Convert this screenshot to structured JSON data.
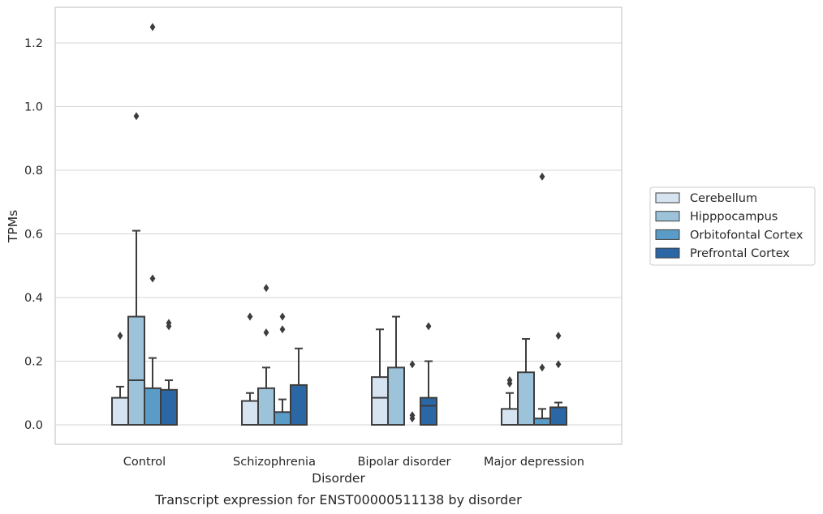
{
  "chart_data": {
    "type": "box",
    "title": "Transcript expression for ENST00000511138 by disorder",
    "xlabel": "Disorder",
    "ylabel": "TPMs",
    "ylim": [
      -0.06,
      1.32
    ],
    "yticks": [
      0.0,
      0.2,
      0.4,
      0.6,
      0.8,
      1.0,
      1.2
    ],
    "ytick_labels": [
      "0.0",
      "0.2",
      "0.4",
      "0.6",
      "0.8",
      "1.0",
      "1.2"
    ],
    "grid": "horizontal",
    "legend_position": "right",
    "categories": [
      "Control",
      "Schizophrenia",
      "Bipolar disorder",
      "Major depression"
    ],
    "series": [
      {
        "name": "Cerebellum",
        "color": "#d6e3f1",
        "boxes": [
          {
            "whislo": 0.0,
            "q1": 0.0,
            "med": 0.0,
            "q3": 0.085,
            "whishi": 0.12,
            "fliers": [
              0.28
            ]
          },
          {
            "whislo": 0.0,
            "q1": 0.0,
            "med": 0.0,
            "q3": 0.075,
            "whishi": 0.1,
            "fliers": [
              0.34
            ]
          },
          {
            "whislo": 0.0,
            "q1": 0.0,
            "med": 0.085,
            "q3": 0.15,
            "whishi": 0.3,
            "fliers": []
          },
          {
            "whislo": 0.0,
            "q1": 0.0,
            "med": 0.0,
            "q3": 0.05,
            "whishi": 0.1,
            "fliers": [
              0.13,
              0.14
            ]
          }
        ]
      },
      {
        "name": "Hipppocampus",
        "color": "#9cc3da",
        "boxes": [
          {
            "whislo": 0.0,
            "q1": 0.0,
            "med": 0.14,
            "q3": 0.34,
            "whishi": 0.61,
            "fliers": [
              0.97
            ]
          },
          {
            "whislo": 0.0,
            "q1": 0.0,
            "med": 0.0,
            "q3": 0.115,
            "whishi": 0.18,
            "fliers": [
              0.29,
              0.43
            ]
          },
          {
            "whislo": 0.0,
            "q1": 0.0,
            "med": 0.0,
            "q3": 0.18,
            "whishi": 0.34,
            "fliers": []
          },
          {
            "whislo": 0.0,
            "q1": 0.0,
            "med": 0.0,
            "q3": 0.165,
            "whishi": 0.27,
            "fliers": []
          }
        ]
      },
      {
        "name": "Orbitofontal Cortex",
        "color": "#5a9cc8",
        "boxes": [
          {
            "whislo": 0.0,
            "q1": 0.0,
            "med": 0.0,
            "q3": 0.115,
            "whishi": 0.21,
            "fliers": [
              0.46,
              1.25
            ]
          },
          {
            "whislo": 0.0,
            "q1": 0.0,
            "med": 0.0,
            "q3": 0.04,
            "whishi": 0.08,
            "fliers": [
              0.3,
              0.34
            ]
          },
          {
            "whislo": 0.0,
            "q1": 0.0,
            "med": 0.0,
            "q3": 0.0,
            "whishi": 0.0,
            "fliers": [
              0.02,
              0.03,
              0.19
            ]
          },
          {
            "whislo": 0.0,
            "q1": 0.0,
            "med": 0.0,
            "q3": 0.02,
            "whishi": 0.05,
            "fliers": [
              0.18,
              0.78
            ]
          }
        ]
      },
      {
        "name": "Prefrontal Cortex",
        "color": "#2c67a5",
        "boxes": [
          {
            "whislo": 0.0,
            "q1": 0.0,
            "med": 0.0,
            "q3": 0.11,
            "whishi": 0.14,
            "fliers": [
              0.31,
              0.32
            ]
          },
          {
            "whislo": 0.0,
            "q1": 0.0,
            "med": 0.0,
            "q3": 0.125,
            "whishi": 0.24,
            "fliers": []
          },
          {
            "whislo": 0.0,
            "q1": 0.0,
            "med": 0.06,
            "q3": 0.085,
            "whishi": 0.2,
            "fliers": [
              0.31
            ]
          },
          {
            "whislo": 0.0,
            "q1": 0.0,
            "med": 0.0,
            "q3": 0.055,
            "whishi": 0.07,
            "fliers": [
              0.19,
              0.28
            ]
          }
        ]
      }
    ]
  }
}
